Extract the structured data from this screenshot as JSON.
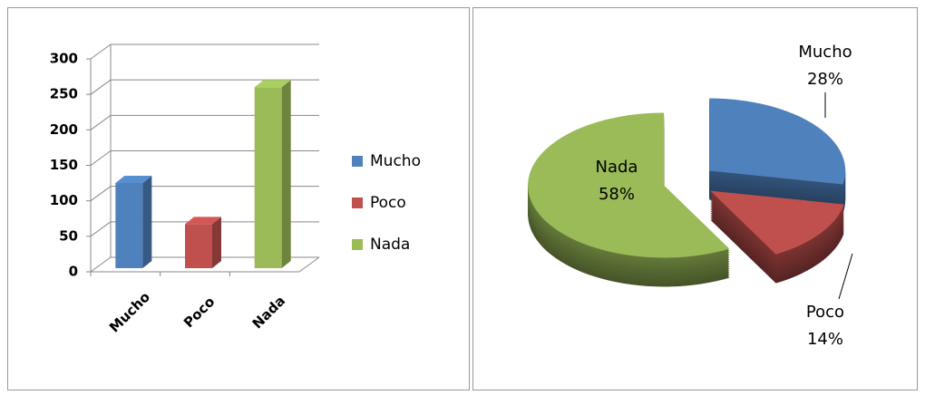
{
  "chart_data": [
    {
      "type": "bar3d",
      "categories": [
        "Mucho",
        "Poco",
        "Nada"
      ],
      "values": [
        120,
        62,
        255
      ],
      "colors": [
        "#4f81bd",
        "#c0504d",
        "#9bbb59"
      ],
      "ylim": [
        0,
        300
      ],
      "yticks": [
        0,
        50,
        100,
        150,
        200,
        250,
        300
      ],
      "grid": true,
      "legend": "right"
    },
    {
      "type": "pie3d",
      "categories": [
        "Mucho",
        "Poco",
        "Nada"
      ],
      "values": [
        28,
        14,
        58
      ],
      "value_labels": [
        "28%",
        "14%",
        "58%"
      ],
      "colors": [
        "#4f81bd",
        "#c0504d",
        "#9bbb59"
      ]
    }
  ]
}
